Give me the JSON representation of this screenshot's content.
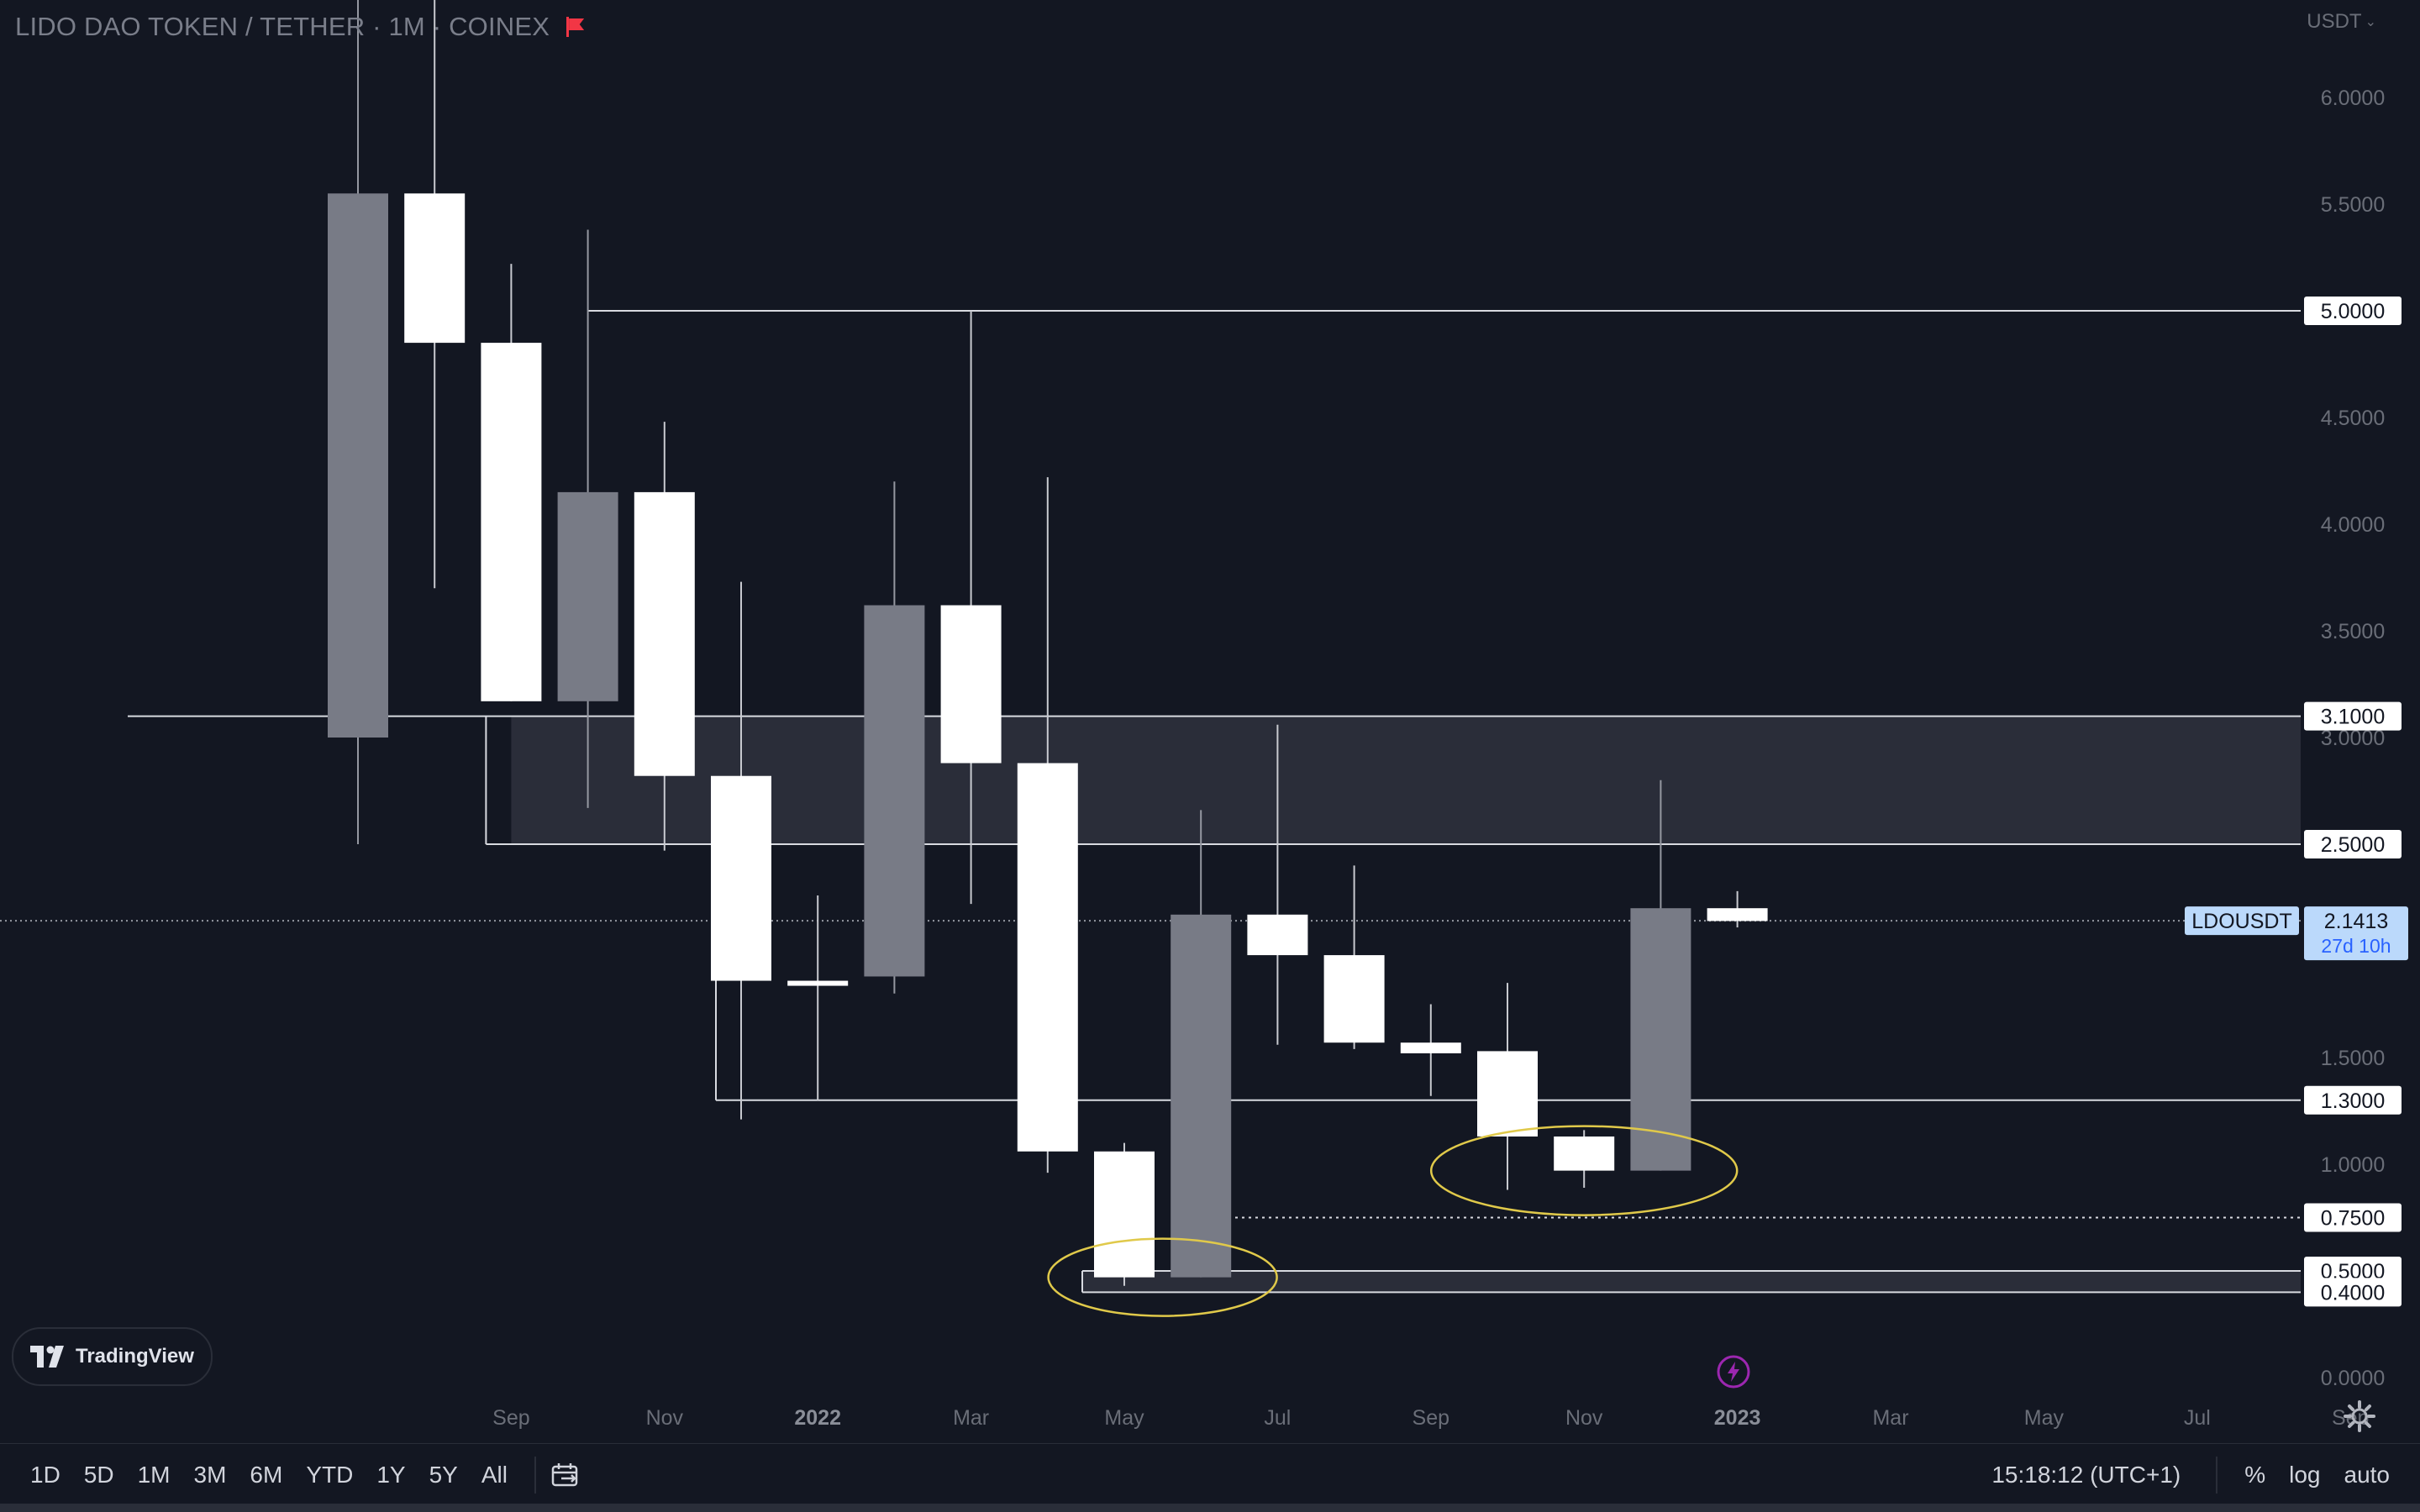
{
  "header": {
    "symbol_title": "LIDO DAO TOKEN / TETHER · 1M · COINEX",
    "currency": "USDT",
    "currency_chevron": "chevron-down-icon",
    "flag_icon": "flag-icon"
  },
  "chart_data": {
    "type": "candlestick",
    "symbol": "LDOUSDT",
    "interval": "1M",
    "y_ticks": [
      "6.0000",
      "5.5000",
      "5.0000",
      "4.5000",
      "4.0000",
      "3.5000",
      "3.1000",
      "3.0000",
      "2.5000",
      "1.5000",
      "1.3000",
      "1.0000",
      "0.7500",
      "0.5000",
      "0.4000",
      "0.0000"
    ],
    "x_ticks": [
      "Sep",
      "Nov",
      "2022",
      "Mar",
      "May",
      "Jul",
      "Sep",
      "Nov",
      "2023",
      "Mar",
      "May",
      "Jul",
      "Sep"
    ],
    "bold_x_ticks": [
      "2022",
      "2023"
    ],
    "candles": [
      {
        "month": "2021-07",
        "open": 3.0,
        "high": 7.05,
        "close": 5.55,
        "low": 2.5,
        "direction": "up"
      },
      {
        "month": "2021-08",
        "open": 5.55,
        "high": 7.05,
        "close": 4.85,
        "low": 3.7,
        "direction": "down"
      },
      {
        "month": "2021-09",
        "open": 4.85,
        "high": 5.22,
        "close": 3.17,
        "low": 3.17,
        "direction": "down"
      },
      {
        "month": "2021-10",
        "open": 3.17,
        "high": 5.38,
        "close": 4.15,
        "low": 2.67,
        "direction": "up"
      },
      {
        "month": "2021-11",
        "open": 4.15,
        "high": 4.48,
        "close": 2.82,
        "low": 2.47,
        "direction": "down"
      },
      {
        "month": "2021-12",
        "open": 2.82,
        "high": 3.73,
        "close": 1.86,
        "low": 1.21,
        "direction": "down"
      },
      {
        "month": "2022-01",
        "open": 1.86,
        "high": 2.26,
        "close": 1.84,
        "low": 1.3,
        "direction": "down"
      },
      {
        "month": "2022-02",
        "open": 1.88,
        "high": 4.2,
        "close": 3.62,
        "low": 1.8,
        "direction": "up"
      },
      {
        "month": "2022-03",
        "open": 3.62,
        "high": 5.0,
        "close": 2.88,
        "low": 2.22,
        "direction": "down"
      },
      {
        "month": "2022-04",
        "open": 2.88,
        "high": 4.22,
        "close": 1.06,
        "low": 0.96,
        "direction": "down"
      },
      {
        "month": "2022-05",
        "open": 1.06,
        "high": 1.1,
        "close": 0.47,
        "low": 0.43,
        "direction": "down"
      },
      {
        "month": "2022-06",
        "open": 0.47,
        "high": 2.66,
        "close": 2.17,
        "low": 0.47,
        "direction": "up"
      },
      {
        "month": "2022-07",
        "open": 2.17,
        "high": 3.06,
        "close": 1.98,
        "low": 1.56,
        "direction": "down"
      },
      {
        "month": "2022-08",
        "open": 1.98,
        "high": 2.4,
        "close": 1.57,
        "low": 1.54,
        "direction": "down"
      },
      {
        "month": "2022-09",
        "open": 1.57,
        "high": 1.75,
        "close": 1.52,
        "low": 1.32,
        "direction": "down"
      },
      {
        "month": "2022-10",
        "open": 1.53,
        "high": 1.85,
        "close": 1.13,
        "low": 0.88,
        "direction": "down"
      },
      {
        "month": "2022-11",
        "open": 1.13,
        "high": 1.16,
        "close": 0.97,
        "low": 0.89,
        "direction": "down"
      },
      {
        "month": "2022-12",
        "open": 0.97,
        "high": 2.8,
        "close": 2.2,
        "low": 0.97,
        "direction": "up"
      },
      {
        "month": "2023-01",
        "open": 2.2,
        "high": 2.28,
        "close": 2.14,
        "low": 2.11,
        "direction": "down"
      }
    ],
    "last_price_label": {
      "symbol": "LDOUSDT",
      "price": "2.1413",
      "countdown": "27d 10h"
    },
    "horizontal_levels": [
      {
        "value": 5.0,
        "label": "5.0000"
      },
      {
        "value": 3.1,
        "label": "3.1000"
      },
      {
        "value": 2.5,
        "label": "2.5000"
      },
      {
        "value": 1.3,
        "label": "1.3000"
      },
      {
        "value": 0.75,
        "label": "0.7500",
        "style": "dotted"
      },
      {
        "value": 0.5,
        "label": "0.5000"
      },
      {
        "value": 0.4,
        "label": "0.4000"
      }
    ],
    "zones": [
      {
        "from": 2.5,
        "to": 3.1
      },
      {
        "from": 0.4,
        "to": 0.5
      }
    ],
    "highlight_ellipses": [
      {
        "around_months": [
          "2022-05",
          "2022-06"
        ],
        "color": "#e0c94a"
      },
      {
        "around_months": [
          "2022-10",
          "2022-11",
          "2022-12"
        ],
        "color": "#e0c94a"
      }
    ],
    "colors": {
      "background": "#131722",
      "up_candle": "#787b86",
      "down_candle": "#ffffff",
      "zone_fill": "#333641",
      "level_line": "#d8dae0",
      "ellipse": "#e0c94a",
      "last_price_bg": "#bbd9fb"
    }
  },
  "logo": {
    "text": "TradingView",
    "icon": "tradingview-logo-icon"
  },
  "bottom_bar": {
    "ranges": [
      "1D",
      "5D",
      "1M",
      "3M",
      "6M",
      "YTD",
      "1Y",
      "5Y",
      "All"
    ],
    "calendar_icon": "calendar-range-icon",
    "time": "15:18:12 (UTC+1)",
    "percent": "%",
    "log": "log",
    "auto": "auto",
    "settings_icon": "gear-icon",
    "lightning_icon": "lightning-icon"
  }
}
